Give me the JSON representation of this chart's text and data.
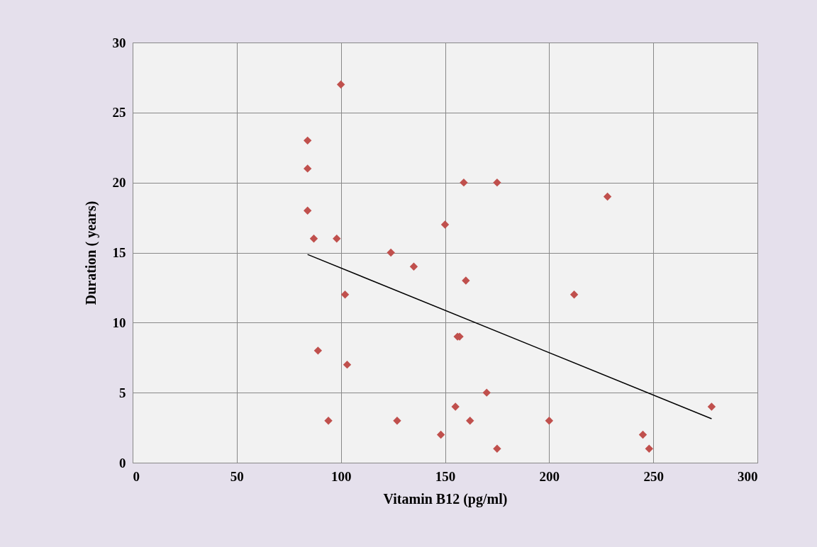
{
  "chart_data": {
    "type": "scatter",
    "xlabel": "Vitamin B12 (pg/ml)",
    "ylabel": "Duration ( years)",
    "xlim": [
      0,
      300
    ],
    "ylim": [
      0,
      30
    ],
    "xticks": [
      0,
      50,
      100,
      150,
      200,
      250,
      300
    ],
    "yticks": [
      0,
      5,
      10,
      15,
      20,
      25,
      30
    ],
    "grid": true,
    "marker": "diamond",
    "series": [
      {
        "color": "#c0504d",
        "x": [
          84,
          84,
          84,
          87,
          100,
          98,
          102,
          89,
          103,
          94,
          124,
          135,
          127,
          150,
          159,
          175,
          160,
          156,
          157,
          170,
          155,
          162,
          148,
          175,
          200,
          212,
          228,
          245,
          248,
          278
        ],
        "values": [
          23,
          21,
          18,
          16,
          27,
          16,
          12,
          8,
          7,
          3,
          15,
          14,
          3,
          17,
          20,
          20,
          13,
          9,
          9,
          5,
          4,
          3,
          2,
          1,
          3,
          12,
          19,
          2,
          1,
          4
        ]
      },
      {
        "type": "line",
        "marker": "none",
        "color": "#000000",
        "x": [
          84,
          278
        ],
        "values": [
          14.87,
          3.14
        ]
      }
    ]
  }
}
